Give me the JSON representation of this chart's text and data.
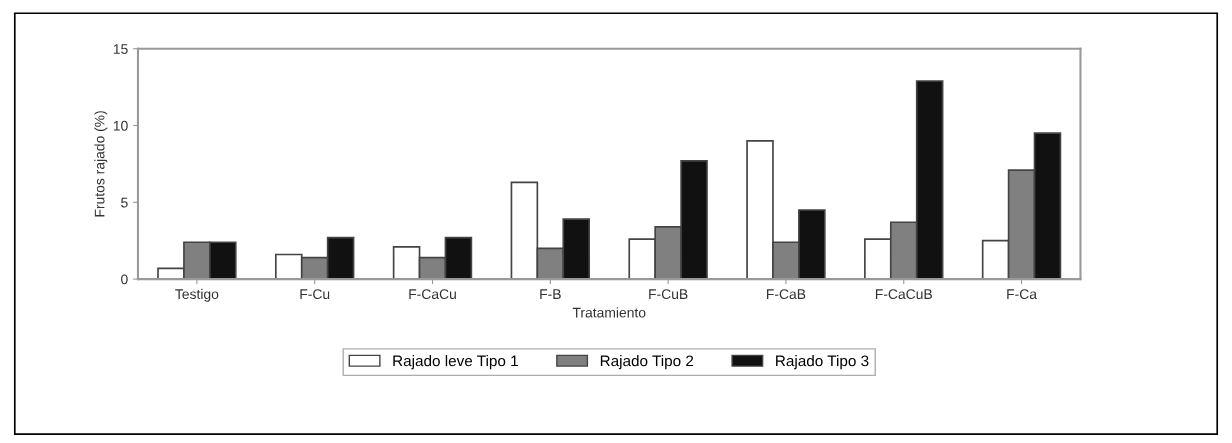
{
  "chart_data": {
    "type": "bar",
    "xlabel": "Tratamiento",
    "ylabel": "Frutos rajado (%)",
    "categories": [
      "Testigo",
      "F-Cu",
      "F-CaCu",
      "F-B",
      "F-CuB",
      "F-CaB",
      "F-CaCuB",
      "F-Ca"
    ],
    "series": [
      {
        "name": "Rajado leve Tipo 1",
        "color": "#ffffff",
        "values": [
          0.7,
          1.6,
          2.1,
          6.3,
          2.6,
          9.0,
          2.6,
          2.5
        ]
      },
      {
        "name": "Rajado Tipo 2",
        "color": "#808080",
        "values": [
          2.4,
          1.4,
          1.4,
          2.0,
          3.4,
          2.4,
          3.7,
          7.1
        ]
      },
      {
        "name": "Rajado Tipo 3",
        "color": "#111111",
        "values": [
          2.4,
          2.7,
          2.7,
          3.9,
          7.7,
          4.5,
          12.9,
          9.5
        ]
      }
    ],
    "ylim": [
      0,
      15
    ],
    "yticks": [
      0,
      5,
      10,
      15
    ],
    "grid": false,
    "legend": "bottom"
  }
}
